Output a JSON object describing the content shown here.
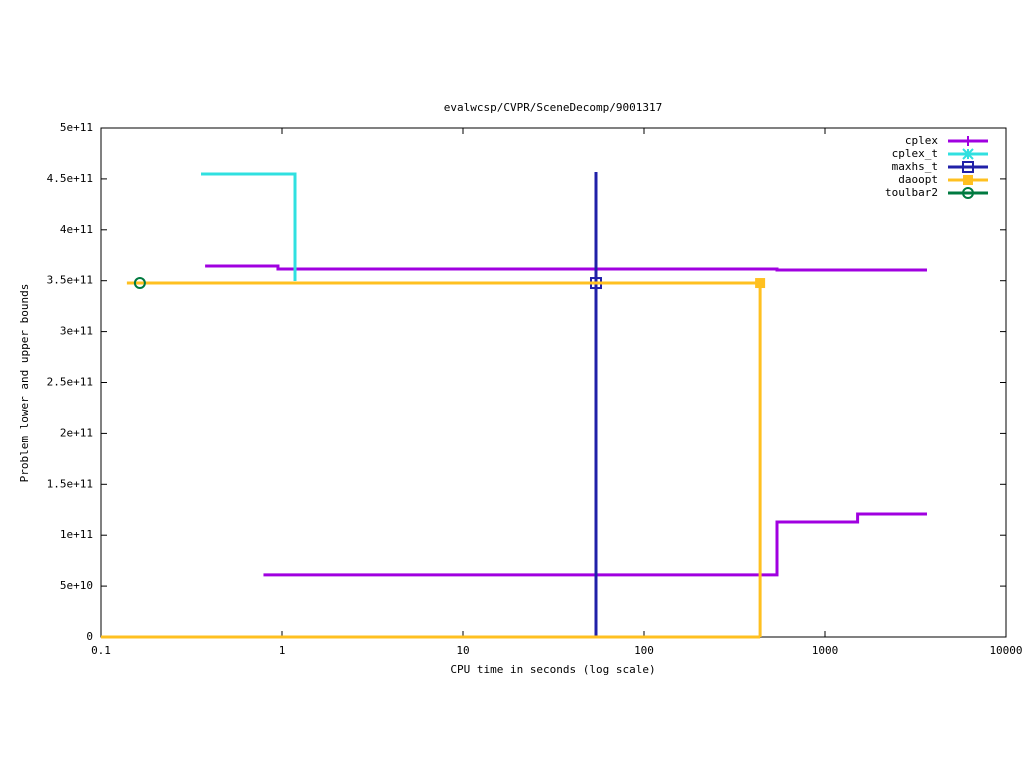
{
  "chart_data": {
    "type": "step",
    "title": "evalwcsp/CVPR/SceneDecomp/9001317",
    "xlabel": "CPU time in seconds (log scale)",
    "ylabel": "Problem lower and upper bounds",
    "xlog": true,
    "xlim": [
      0.1,
      10000
    ],
    "xticks": [
      0.1,
      1,
      10,
      100,
      1000,
      10000
    ],
    "ylim": [
      0,
      500000000000
    ],
    "yticks": [
      0,
      {
        "value": 50000000000,
        "label": "5e+10"
      },
      {
        "value": 100000000000,
        "label": "1e+11"
      },
      {
        "value": 150000000000,
        "label": "1.5e+11"
      },
      {
        "value": 200000000000,
        "label": "2e+11"
      },
      {
        "value": 250000000000,
        "label": "2.5e+11"
      },
      {
        "value": 300000000000,
        "label": "3e+11"
      },
      {
        "value": 350000000000,
        "label": "3.5e+11"
      },
      {
        "value": 400000000000,
        "label": "4e+11"
      },
      {
        "value": 450000000000,
        "label": "4.5e+11"
      },
      {
        "value": 500000000000,
        "label": "5e+11"
      }
    ],
    "legend": "top-right",
    "series": [
      {
        "name": "cplex",
        "color": "#a000e0",
        "marker": "plus",
        "x": [
          0.376,
          0.95,
          543,
          3660,
          null,
          0.79,
          543,
          1514,
          3660
        ],
        "values": [
          364400000000,
          361500000000,
          360500000000,
          360500000000,
          null,
          61000000000,
          113000000000,
          120800000000,
          120800000000
        ],
        "point_x": [],
        "point_values": []
      },
      {
        "name": "cplex_t",
        "color": "#30e0e0",
        "marker": "cross",
        "x": [
          0.357,
          1.18
        ],
        "values": [
          454800000000,
          349700000000
        ],
        "point_x": [],
        "point_values": []
      },
      {
        "name": "maxhs_t",
        "color": "#2020a8",
        "marker": "square-open",
        "x": [
          54.3,
          54.3
        ],
        "values": [
          456800000000,
          0
        ],
        "point_x": [
          54.3
        ],
        "point_values": [
          347700000000
        ]
      },
      {
        "name": "daoopt",
        "color": "#ffc020",
        "marker": "square",
        "x": [
          0.139,
          438,
          438,
          null,
          0.1,
          438
        ],
        "values": [
          347700000000,
          347700000000,
          0,
          null,
          0,
          0
        ],
        "point_x": [
          438
        ],
        "point_values": [
          347700000000
        ]
      },
      {
        "name": "toulbar2",
        "color": "#007a40",
        "marker": "circle",
        "x": [],
        "values": [],
        "point_x": [
          0.164
        ],
        "point_values": [
          347700000000
        ]
      }
    ]
  }
}
